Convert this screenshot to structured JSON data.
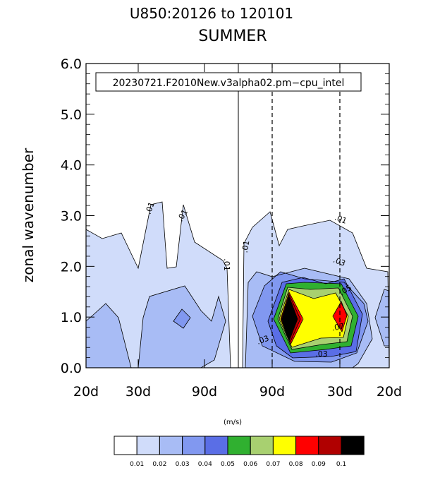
{
  "chart_data": {
    "type": "contour",
    "title_line1": "U850:20126 to 120101",
    "title_line2": "SUMMER",
    "ylabel": "zonal wavenumber",
    "units_label": "(m/s)",
    "case_label": "20230721.F2010New.v3alpha02.pm−cpu_intel",
    "ylim": [
      0,
      6
    ],
    "y_ticks": [
      "0.0",
      "1.0",
      "2.0",
      "3.0",
      "4.0",
      "5.0",
      "6.0"
    ],
    "x_tick_labels": [
      "20d",
      "30d",
      "90d",
      "90d",
      "30d",
      "20d"
    ],
    "contour_levels": [
      0.01,
      0.02,
      0.03,
      0.04,
      0.05,
      0.06,
      0.07,
      0.08,
      0.09,
      0.1
    ],
    "colorbar_labels": [
      "0.01",
      "0.02",
      "0.03",
      "0.04",
      "0.05",
      "0.06",
      "0.07",
      "0.08",
      "0.09",
      "0.1"
    ],
    "colorbar_colors": [
      "#ffffff",
      "#d0dcfa",
      "#a8bcf5",
      "#8198f0",
      "#5a6ee6",
      "#30b030",
      "#a8d070",
      "#ffff00",
      "#ff0000",
      "#b00000",
      "#000000"
    ],
    "contour_line_labels": [
      ".01",
      ".01",
      ".01",
      ".01",
      ".01",
      ".03",
      ".03",
      ".05",
      ".07",
      ".03"
    ]
  }
}
